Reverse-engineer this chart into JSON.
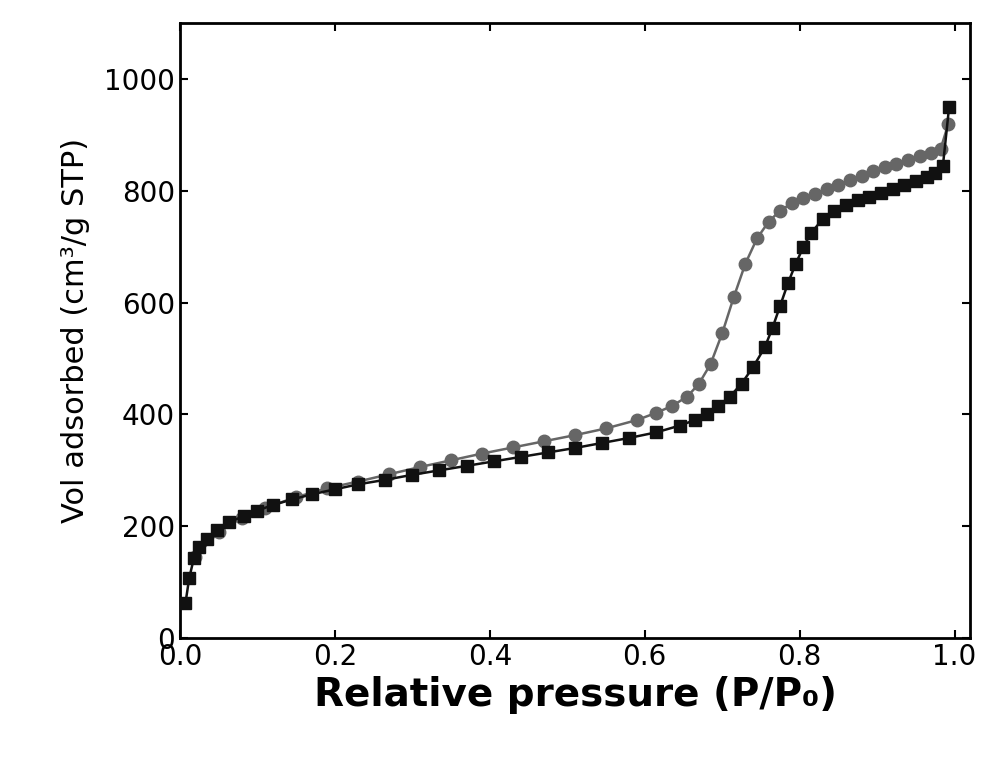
{
  "xlabel": "Relative pressure (P/P₀)",
  "ylabel": "Vol adsorbed (cm³/g STP)",
  "xlim": [
    0.0,
    1.02
  ],
  "ylim": [
    0,
    1100
  ],
  "yticks": [
    0,
    200,
    400,
    600,
    800,
    1000
  ],
  "xticks": [
    0.0,
    0.2,
    0.4,
    0.6,
    0.8,
    1.0
  ],
  "background_color": "#ffffff",
  "xlabel_fontsize": 28,
  "ylabel_fontsize": 22,
  "tick_fontsize": 20,
  "series1_x": [
    0.007,
    0.012,
    0.018,
    0.025,
    0.035,
    0.048,
    0.063,
    0.082,
    0.1,
    0.12,
    0.145,
    0.17,
    0.2,
    0.23,
    0.265,
    0.3,
    0.335,
    0.37,
    0.405,
    0.44,
    0.475,
    0.51,
    0.545,
    0.58,
    0.615,
    0.645,
    0.665,
    0.68,
    0.695,
    0.71,
    0.725,
    0.74,
    0.755,
    0.765,
    0.775,
    0.785,
    0.795,
    0.805,
    0.815,
    0.83,
    0.845,
    0.86,
    0.875,
    0.89,
    0.905,
    0.92,
    0.935,
    0.95,
    0.965,
    0.975,
    0.985,
    0.993
  ],
  "series1_y": [
    62,
    108,
    143,
    162,
    178,
    193,
    207,
    218,
    228,
    238,
    248,
    257,
    266,
    275,
    283,
    292,
    300,
    308,
    316,
    324,
    332,
    340,
    349,
    358,
    368,
    380,
    390,
    400,
    415,
    432,
    455,
    485,
    520,
    555,
    595,
    635,
    670,
    700,
    725,
    750,
    765,
    775,
    783,
    790,
    797,
    803,
    810,
    817,
    825,
    833,
    845,
    950
  ],
  "series1_color": "#111111",
  "series1_marker": "s",
  "series1_markersize": 8,
  "series1_linewidth": 1.8,
  "series2_x": [
    0.02,
    0.05,
    0.08,
    0.11,
    0.15,
    0.19,
    0.23,
    0.27,
    0.31,
    0.35,
    0.39,
    0.43,
    0.47,
    0.51,
    0.55,
    0.59,
    0.615,
    0.635,
    0.655,
    0.67,
    0.685,
    0.7,
    0.715,
    0.73,
    0.745,
    0.76,
    0.775,
    0.79,
    0.805,
    0.82,
    0.835,
    0.85,
    0.865,
    0.88,
    0.895,
    0.91,
    0.925,
    0.94,
    0.955,
    0.97,
    0.982,
    0.992
  ],
  "series2_y": [
    145,
    190,
    215,
    233,
    252,
    268,
    280,
    293,
    306,
    318,
    330,
    341,
    352,
    363,
    375,
    390,
    403,
    415,
    432,
    455,
    490,
    545,
    610,
    670,
    715,
    745,
    765,
    778,
    787,
    795,
    803,
    811,
    819,
    827,
    835,
    842,
    849,
    856,
    862,
    868,
    875,
    920
  ],
  "series2_color": "#666666",
  "series2_marker": "o",
  "series2_markersize": 9,
  "series2_linewidth": 1.8
}
